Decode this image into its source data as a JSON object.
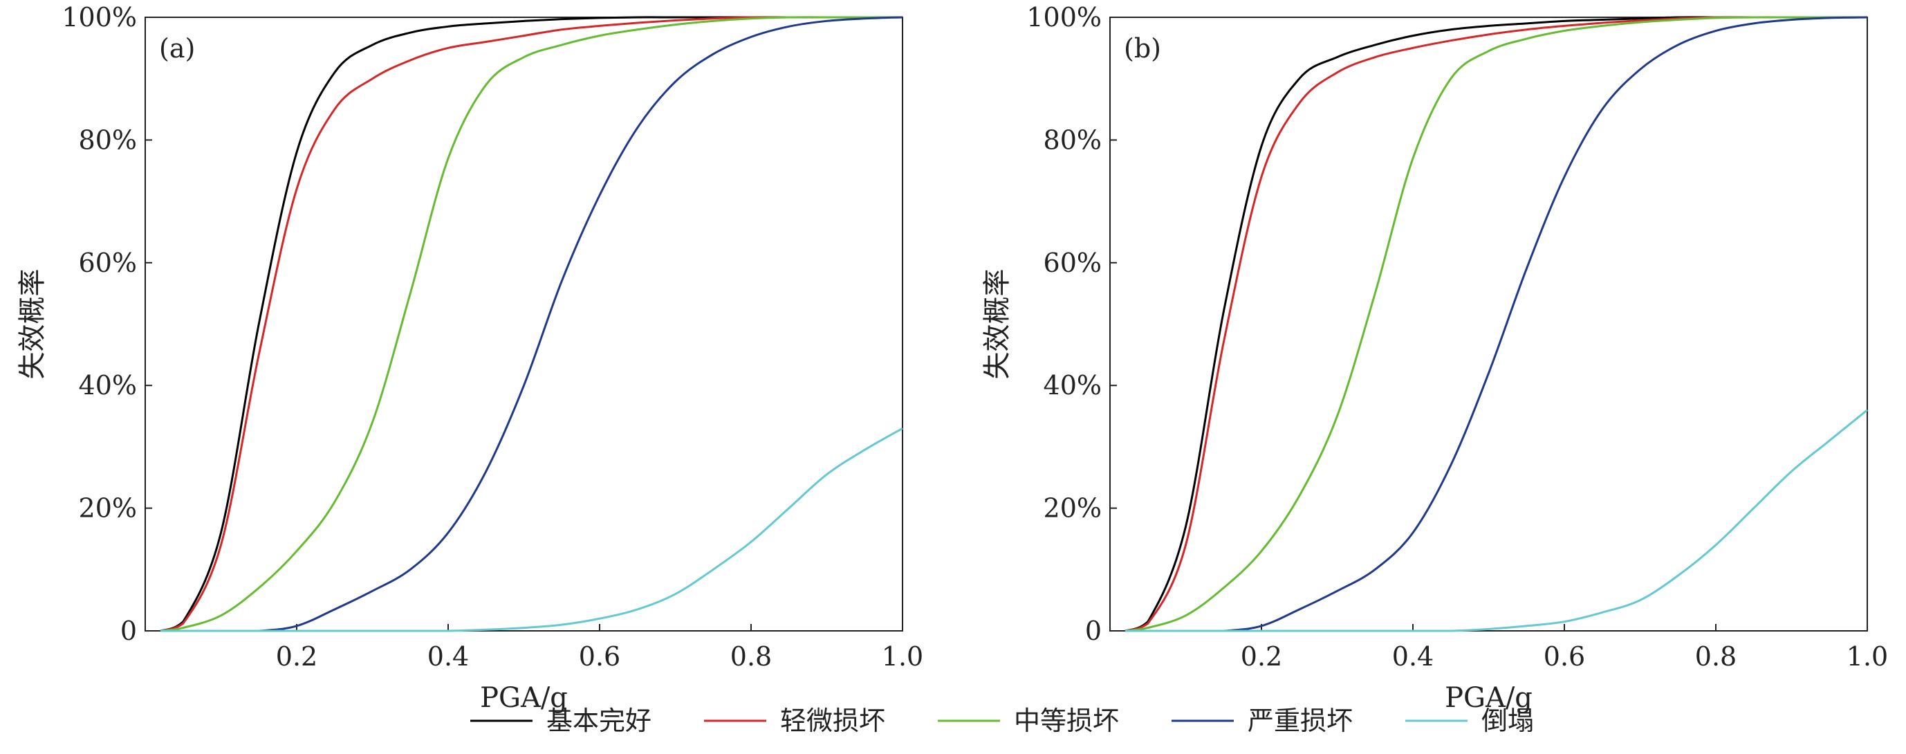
{
  "chart_data": [
    {
      "type": "line",
      "panel_label": "(a)",
      "xlabel": "PGA/g",
      "ylabel": "失效概率",
      "xlim": [
        0.0,
        1.0
      ],
      "ylim": [
        0,
        100
      ],
      "x_ticks": [
        0.2,
        0.4,
        0.6,
        0.8,
        1.0
      ],
      "x_tick_labels": [
        "0.2",
        "0.4",
        "0.6",
        "0.8",
        "1.0"
      ],
      "y_ticks": [
        0,
        20,
        40,
        60,
        80,
        100
      ],
      "y_tick_labels": [
        "0",
        "20%",
        "40%",
        "60%",
        "80%",
        "100%"
      ],
      "grid": false,
      "x": [
        0.02,
        0.05,
        0.1,
        0.15,
        0.2,
        0.25,
        0.3,
        0.35,
        0.4,
        0.45,
        0.5,
        0.55,
        0.6,
        0.65,
        0.7,
        0.75,
        0.8,
        0.85,
        0.9,
        0.95,
        1.0
      ],
      "series": [
        {
          "name": "基本完好",
          "color": "#000000",
          "values": [
            0,
            1.5,
            16,
            50,
            78,
            91,
            95.5,
            97.5,
            98.5,
            99,
            99.4,
            99.7,
            99.9,
            100,
            100,
            100,
            100,
            100,
            100,
            100,
            100
          ]
        },
        {
          "name": "轻微损坏",
          "color": "#d62728",
          "values": [
            0,
            1.2,
            14,
            45,
            72,
            85,
            90,
            93,
            95,
            96,
            97,
            98,
            98.6,
            99.1,
            99.5,
            99.8,
            100,
            100,
            100,
            100,
            100
          ]
        },
        {
          "name": "中等损坏",
          "color": "#66bb33",
          "values": [
            0,
            0.5,
            2.5,
            7,
            13,
            21,
            34,
            55,
            77,
            89,
            93.5,
            95.5,
            97,
            98,
            98.8,
            99.4,
            99.8,
            100,
            100,
            100,
            100
          ]
        },
        {
          "name": "严重损坏",
          "color": "#1f3a8a",
          "values": [
            0,
            0,
            0,
            0,
            0.8,
            3.5,
            6.5,
            10,
            16,
            26,
            40,
            57,
            71,
            82,
            89.5,
            94,
            96.8,
            98.5,
            99.4,
            99.8,
            100
          ]
        },
        {
          "name": "倒塌",
          "color": "#66c8d2",
          "values": [
            0,
            0,
            0,
            0,
            0,
            0,
            0,
            0,
            0,
            0.2,
            0.5,
            1,
            2,
            3.5,
            6,
            10,
            14.5,
            20,
            25.5,
            29.5,
            33
          ]
        }
      ]
    },
    {
      "type": "line",
      "panel_label": "(b)",
      "xlabel": "PGA/g",
      "ylabel": "失效概率",
      "xlim": [
        0.0,
        1.0
      ],
      "ylim": [
        0,
        100
      ],
      "x_ticks": [
        0.2,
        0.4,
        0.6,
        0.8,
        1.0
      ],
      "x_tick_labels": [
        "0.2",
        "0.4",
        "0.6",
        "0.8",
        "1.0"
      ],
      "y_ticks": [
        0,
        20,
        40,
        60,
        80,
        100
      ],
      "y_tick_labels": [
        "0",
        "20%",
        "40%",
        "60%",
        "80%",
        "100%"
      ],
      "grid": false,
      "x": [
        0.02,
        0.05,
        0.1,
        0.15,
        0.2,
        0.25,
        0.3,
        0.35,
        0.4,
        0.45,
        0.5,
        0.55,
        0.6,
        0.65,
        0.7,
        0.75,
        0.8,
        0.85,
        0.9,
        0.95,
        1.0
      ],
      "series": [
        {
          "name": "基本完好",
          "color": "#000000",
          "values": [
            0,
            1.5,
            17,
            52,
            79,
            90,
            93.5,
            95.5,
            97,
            98,
            98.6,
            99,
            99.4,
            99.6,
            99.8,
            100,
            100,
            100,
            100,
            100,
            100
          ]
        },
        {
          "name": "轻微损坏",
          "color": "#d62728",
          "values": [
            0,
            1.2,
            14,
            47,
            74,
            86,
            91,
            93.5,
            95,
            96.2,
            97.2,
            98,
            98.6,
            99.1,
            99.5,
            99.8,
            100,
            100,
            100,
            100,
            100
          ]
        },
        {
          "name": "中等损坏",
          "color": "#66bb33",
          "values": [
            0,
            0.5,
            2.5,
            7,
            13,
            22,
            35,
            55,
            77,
            90,
            94.5,
            96.5,
            97.8,
            98.6,
            99.2,
            99.6,
            99.9,
            100,
            100,
            100,
            100
          ]
        },
        {
          "name": "严重损坏",
          "color": "#1f3a8a",
          "values": [
            0,
            0,
            0,
            0,
            0.8,
            3.5,
            6.5,
            10,
            16,
            27,
            42,
            59,
            74,
            85,
            91.5,
            95.5,
            97.8,
            99,
            99.6,
            99.9,
            100
          ]
        },
        {
          "name": "倒塌",
          "color": "#66c8d2",
          "values": [
            0,
            0,
            0,
            0,
            0,
            0,
            0,
            0,
            0,
            0,
            0.3,
            0.8,
            1.5,
            3,
            5,
            9,
            14,
            20,
            26,
            31,
            36
          ]
        }
      ]
    }
  ],
  "legend": {
    "placement": "bottom-center",
    "items": [
      {
        "label": "基本完好",
        "color": "#000000"
      },
      {
        "label": "轻微损坏",
        "color": "#d62728"
      },
      {
        "label": "中等损坏",
        "color": "#66bb33"
      },
      {
        "label": "严重损坏",
        "color": "#1f3a8a"
      },
      {
        "label": "倒塌",
        "color": "#66c8d2"
      }
    ]
  }
}
